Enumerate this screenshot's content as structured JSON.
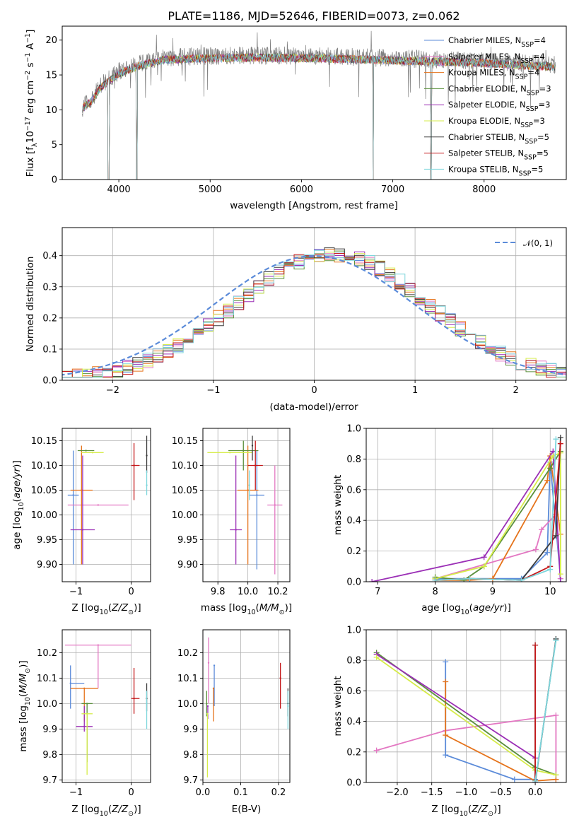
{
  "colors": [
    "#5b8bd9",
    "#e377c2",
    "#e5731b",
    "#5a8f3b",
    "#9b2fb6",
    "#d6ec4a",
    "#3b3b3b",
    "#c4191b",
    "#7dd6dc"
  ],
  "chart_data": [
    {
      "type": "line",
      "title": "PLATE=1186, MJD=52646, FIBERID=0073, z=0.062",
      "xlabel": "wavelength [Angstrom, rest frame]",
      "ylabel": "Flux [f_λ10^-17 erg cm^-2 s^-1 A^-1]",
      "xlim": [
        3380,
        8900
      ],
      "ylim": [
        0,
        22
      ],
      "xticks": [
        4000,
        5000,
        6000,
        7000,
        8000
      ],
      "yticks": [
        0,
        5,
        10,
        15,
        20
      ],
      "grid": false,
      "legend_position": "top-right",
      "series": [
        {
          "name": "Chabrier MILES, N_SSP=4"
        },
        {
          "name": "Salpeter MILES, N_SSP=4"
        },
        {
          "name": "Kroupa MILES, N_SSP=4"
        },
        {
          "name": "Chabrier ELODIE, N_SSP=3"
        },
        {
          "name": "Salpeter ELODIE, N_SSP=3"
        },
        {
          "name": "Kroupa ELODIE, N_SSP=3"
        },
        {
          "name": "Chabrier STELIB, N_SSP=5"
        },
        {
          "name": "Salpeter STELIB, N_SSP=5"
        },
        {
          "name": "Kroupa STELIB, N_SSP=5"
        }
      ],
      "data_trace_color": "#808080",
      "model_envelope": {
        "x": [
          3600,
          3700,
          3800,
          3900,
          4000,
          4200,
          4500,
          5000,
          5500,
          6000,
          6500,
          7000,
          7500,
          8000,
          8500,
          8800
        ],
        "y": [
          10.5,
          11.5,
          13.5,
          14.5,
          15.5,
          16.5,
          17.5,
          17.7,
          17.8,
          17.7,
          17.6,
          17.4,
          17.2,
          17.0,
          16.6,
          16.5
        ]
      }
    },
    {
      "type": "line",
      "xlabel": "(data-model)/error",
      "ylabel": "Normed distribution",
      "xlim": [
        -2.5,
        2.5
      ],
      "ylim": [
        0,
        0.49
      ],
      "xticks": [
        -2,
        -1,
        0,
        1,
        2
      ],
      "yticks": [
        0.0,
        0.1,
        0.2,
        0.3,
        0.4
      ],
      "grid": true,
      "legend_position": "top-right",
      "series": [
        {
          "name": "𝒩(0, 1)",
          "style": "dashed",
          "color": "#5b8bd9"
        }
      ]
    },
    {
      "type": "scatter",
      "errorbars": true,
      "xlabel": "Z [log10(Z/Z⊙)]",
      "ylabel": "age  [log10(age/yr)]",
      "xlim": [
        -1.25,
        0.35
      ],
      "ylim": [
        9.865,
        10.175
      ],
      "xticks": [
        -1,
        0
      ],
      "yticks": [
        9.9,
        9.95,
        10.0,
        10.05,
        10.1,
        10.15
      ],
      "grid": true,
      "points": [
        {
          "x": -1.05,
          "y": 10.04,
          "xerr": [
            0.1,
            0.1
          ],
          "yerr": [
            0.14,
            0.09
          ]
        },
        {
          "x": -0.6,
          "y": 10.02,
          "xerr": [
            0.55,
            0.55
          ],
          "yerr": [
            0.0,
            0.0
          ]
        },
        {
          "x": -0.9,
          "y": 10.05,
          "xerr": [
            0.2,
            0.2
          ],
          "yerr": [
            0.15,
            0.09
          ]
        },
        {
          "x": -0.82,
          "y": 10.13,
          "xerr": [
            0.15,
            0.15
          ],
          "yerr": [
            0.0,
            0.0
          ]
        },
        {
          "x": -0.88,
          "y": 9.97,
          "xerr": [
            0.22,
            0.22
          ],
          "yerr": [
            0.07,
            0.15
          ]
        },
        {
          "x": -0.7,
          "y": 10.126,
          "xerr": [
            0.2,
            0.2
          ],
          "yerr": [
            0.0,
            0.0
          ]
        },
        {
          "x": 0.28,
          "y": 10.12,
          "xerr": [
            0.0,
            0.0
          ],
          "yerr": [
            0.035,
            0.04
          ]
        },
        {
          "x": 0.05,
          "y": 10.1,
          "xerr": [
            0.05,
            0.1
          ],
          "yerr": [
            0.07,
            0.045
          ]
        },
        {
          "x": 0.28,
          "y": 10.06,
          "xerr": [
            0.0,
            0.0
          ],
          "yerr": [
            0.02,
            0.03
          ]
        }
      ]
    },
    {
      "type": "scatter",
      "errorbars": true,
      "xlabel": "mass [log10(M/M⊙)]",
      "ylabel": "",
      "xlim": [
        9.7,
        10.28
      ],
      "ylim": [
        9.865,
        10.175
      ],
      "xticks": [
        9.8,
        10.0,
        10.2
      ],
      "yticks": [
        9.9,
        9.95,
        10.0,
        10.05,
        10.1,
        10.15
      ],
      "grid": true,
      "points": [
        {
          "x": 10.06,
          "y": 10.04,
          "xerr": [
            0.05,
            0.05
          ],
          "yerr": [
            0.15,
            0.09
          ]
        },
        {
          "x": 10.18,
          "y": 10.02,
          "xerr": [
            0.05,
            0.05
          ],
          "yerr": [
            0.14,
            0.08
          ]
        },
        {
          "x": 10.0,
          "y": 10.05,
          "xerr": [
            0.07,
            0.07
          ],
          "yerr": [
            0.15,
            0.09
          ]
        },
        {
          "x": 9.97,
          "y": 10.13,
          "xerr": [
            0.1,
            0.1
          ],
          "yerr": [
            0.04,
            0.02
          ]
        },
        {
          "x": 9.92,
          "y": 9.97,
          "xerr": [
            0.04,
            0.04
          ],
          "yerr": [
            0.07,
            0.15
          ]
        },
        {
          "x": 9.88,
          "y": 10.126,
          "xerr": [
            0.15,
            0.15
          ],
          "yerr": [
            0.0,
            0.0
          ]
        },
        {
          "x": 10.03,
          "y": 10.14,
          "xerr": [
            0.0,
            0.0
          ],
          "yerr": [
            0.03,
            0.02
          ]
        },
        {
          "x": 10.05,
          "y": 10.1,
          "xerr": [
            0.05,
            0.05
          ],
          "yerr": [
            0.05,
            0.05
          ]
        },
        {
          "x": 10.01,
          "y": 10.06,
          "xerr": [
            0.0,
            0.0
          ],
          "yerr": [
            0.03,
            0.03
          ]
        }
      ]
    },
    {
      "type": "line",
      "xlabel": "age  [log10(age/yr)]",
      "ylabel": "mass weight",
      "xlim": [
        6.8,
        10.28
      ],
      "ylim": [
        0,
        1
      ],
      "xticks": [
        7,
        8,
        9,
        10
      ],
      "yticks": [
        0.0,
        0.2,
        0.4,
        0.6,
        0.8,
        1.0
      ],
      "grid": true,
      "series": [
        {
          "x": [
            8.0,
            9.5,
            9.95,
            10.0,
            10.18
          ],
          "y": [
            0.02,
            0.02,
            0.19,
            0.78,
            0.02
          ]
        },
        {
          "x": [
            8.0,
            9.75,
            9.85,
            10.1,
            10.18
          ],
          "y": [
            0.02,
            0.21,
            0.34,
            0.44,
            0.02
          ]
        },
        {
          "x": [
            8.0,
            8.6,
            9.0,
            9.95,
            10.0,
            10.18
          ],
          "y": [
            0.01,
            0.01,
            0.02,
            0.66,
            0.82,
            0.31
          ]
        },
        {
          "x": [
            8.0,
            8.5,
            8.85,
            10.0,
            10.18
          ],
          "y": [
            0.03,
            0.01,
            0.1,
            0.74,
            0.85
          ]
        },
        {
          "x": [
            6.9,
            8.85,
            10.05,
            10.18
          ],
          "y": [
            0.0,
            0.16,
            0.85,
            0.0
          ]
        },
        {
          "x": [
            8.0,
            8.85,
            10.05,
            10.18,
            10.18
          ],
          "y": [
            0.02,
            0.1,
            0.82,
            0.84,
            0.05
          ]
        },
        {
          "x": [
            8.0,
            8.6,
            9.5,
            10.1,
            10.18
          ],
          "y": [
            0.01,
            0.02,
            0.01,
            0.3,
            0.94
          ]
        },
        {
          "x": [
            8.0,
            8.6,
            9.5,
            10.0,
            10.18
          ],
          "y": [
            0.01,
            0.02,
            0.01,
            0.1,
            0.9
          ]
        },
        {
          "x": [
            8.0,
            8.6,
            9.5,
            10.0,
            10.1
          ],
          "y": [
            0.01,
            0.02,
            0.01,
            0.08,
            0.93
          ]
        }
      ]
    },
    {
      "type": "scatter",
      "errorbars": true,
      "xlabel": "Z [log10(Z/Z⊙)]",
      "ylabel": "mass [log10(M/M⊙)]",
      "xlim": [
        -1.25,
        0.35
      ],
      "ylim": [
        9.69,
        10.29
      ],
      "xticks": [
        -1,
        0
      ],
      "yticks": [
        9.7,
        9.8,
        9.9,
        10.0,
        10.1,
        10.2
      ],
      "grid": true,
      "points": [
        {
          "x": -1.1,
          "y": 10.08,
          "xerr": [
            0.0,
            0.25
          ],
          "yerr": [
            0.1,
            0.07
          ]
        },
        {
          "x": -0.6,
          "y": 10.23,
          "xerr": [
            0.6,
            0.6
          ],
          "yerr": [
            0.17,
            0.0
          ]
        },
        {
          "x": -0.85,
          "y": 10.06,
          "xerr": [
            0.25,
            0.25
          ],
          "yerr": [
            0.13,
            0.0
          ]
        },
        {
          "x": -0.8,
          "y": 10.0,
          "xerr": [
            0.1,
            0.1
          ],
          "yerr": [
            0.23,
            0.0
          ]
        },
        {
          "x": -0.85,
          "y": 9.91,
          "xerr": [
            0.15,
            0.15
          ],
          "yerr": [
            0.02,
            0.08
          ]
        },
        {
          "x": -0.8,
          "y": 9.96,
          "xerr": [
            0.1,
            0.1
          ],
          "yerr": [
            0.24,
            0.0
          ]
        },
        {
          "x": 0.28,
          "y": 10.02,
          "xerr": [
            0.0,
            0.0
          ],
          "yerr": [
            0.05,
            0.06
          ]
        },
        {
          "x": 0.05,
          "y": 10.02,
          "xerr": [
            0.05,
            0.1
          ],
          "yerr": [
            0.06,
            0.12
          ]
        },
        {
          "x": 0.28,
          "y": 10.0,
          "xerr": [
            0.0,
            0.0
          ],
          "yerr": [
            0.1,
            0.05
          ]
        }
      ]
    },
    {
      "type": "scatter",
      "errorbars": true,
      "xlabel": "E(B-V)",
      "ylabel": "",
      "xlim": [
        0.0,
        0.23
      ],
      "ylim": [
        9.69,
        10.29
      ],
      "xticks": [
        0.0,
        0.1,
        0.2
      ],
      "yticks": [
        9.7,
        9.8,
        9.9,
        10.0,
        10.1,
        10.2
      ],
      "grid": true,
      "points": [
        {
          "x": 0.03,
          "y": 10.15,
          "yerr": [
            0.16,
            0.0
          ]
        },
        {
          "x": 0.015,
          "y": 10.16,
          "yerr": [
            0.16,
            0.1
          ]
        },
        {
          "x": 0.028,
          "y": 10.06,
          "yerr": [
            0.13,
            0.0
          ]
        },
        {
          "x": 0.01,
          "y": 10.0,
          "yerr": [
            0.05,
            0.05
          ]
        },
        {
          "x": 0.013,
          "y": 9.99,
          "yerr": [
            0.05,
            0.0
          ]
        },
        {
          "x": 0.012,
          "y": 9.96,
          "yerr": [
            0.25,
            0.0
          ]
        },
        {
          "x": 0.225,
          "y": 10.0,
          "yerr": [
            0.05,
            0.06
          ]
        },
        {
          "x": 0.205,
          "y": 10.1,
          "yerr": [
            0.12,
            0.06
          ]
        },
        {
          "x": 0.225,
          "y": 9.99,
          "yerr": [
            0.09,
            0.06
          ]
        }
      ]
    },
    {
      "type": "line",
      "xlabel": "Z [log10(Z/Z⊙)]",
      "ylabel": "mass weight",
      "xlim": [
        -2.45,
        0.45
      ],
      "ylim": [
        0,
        1
      ],
      "xticks": [
        -2.0,
        -1.5,
        -1.0,
        -0.5,
        0.0
      ],
      "yticks": [
        0.0,
        0.2,
        0.4,
        0.6,
        0.8,
        1.0
      ],
      "grid": true,
      "series": [
        {
          "x": [
            -1.3,
            -1.3,
            -0.3,
            0.0,
            0.0
          ],
          "y": [
            0.79,
            0.18,
            0.02,
            0.02,
            0.0
          ]
        },
        {
          "x": [
            -2.3,
            -1.3,
            0.3,
            0.3
          ],
          "y": [
            0.21,
            0.34,
            0.44,
            0.02
          ]
        },
        {
          "x": [
            -1.3,
            -1.3,
            0.0,
            0.3
          ],
          "y": [
            0.66,
            0.31,
            0.01,
            0.02
          ]
        },
        {
          "x": [
            -2.3,
            0.0,
            0.3
          ],
          "y": [
            0.85,
            0.1,
            0.05
          ]
        },
        {
          "x": [
            -2.3,
            0.0,
            0.0
          ],
          "y": [
            0.84,
            0.16,
            0.0
          ]
        },
        {
          "x": [
            -2.3,
            0.0,
            0.3
          ],
          "y": [
            0.82,
            0.08,
            0.05
          ]
        },
        {
          "x": [
            0.0,
            0.0,
            0.3
          ],
          "y": [
            0.9,
            0.0,
            0.94
          ]
        },
        {
          "x": [
            0.0,
            0.0
          ],
          "y": [
            0.9,
            0.01
          ]
        },
        {
          "x": [
            0.0,
            0.3
          ],
          "y": [
            0.01,
            0.93
          ]
        }
      ]
    }
  ]
}
